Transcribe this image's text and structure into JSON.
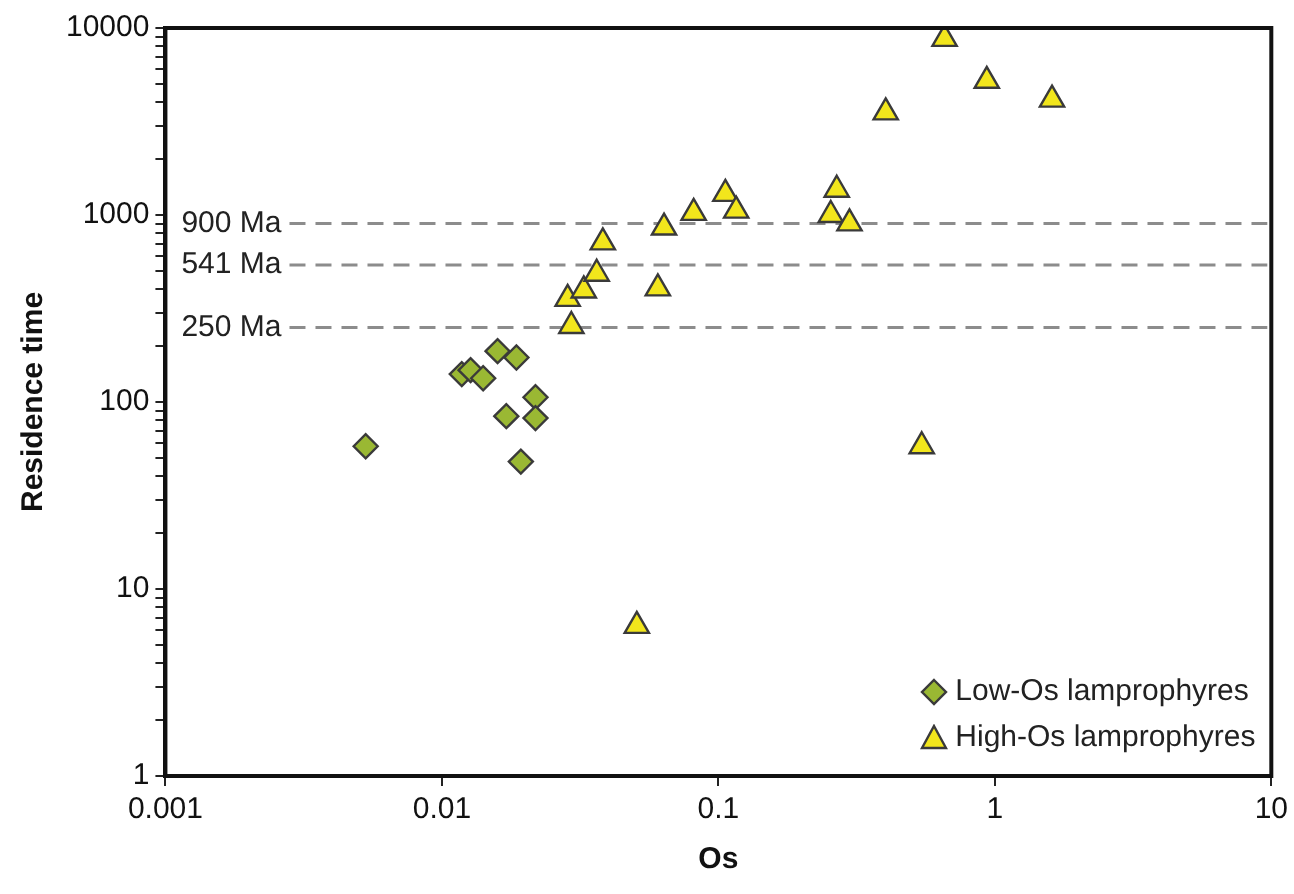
{
  "chart_data": {
    "type": "scatter",
    "xlabel": "Os",
    "ylabel": "Residence time",
    "log": "xy",
    "grid": false,
    "legend": "bottom right",
    "xlim": [
      0.001,
      10
    ],
    "xticks": [
      0.001,
      0.01,
      0.1,
      1,
      10
    ],
    "ylim": [
      1,
      10000
    ],
    "yticks": [
      1,
      {
        "value": 2,
        "label": null
      },
      {
        "value": 3,
        "label": null
      },
      {
        "value": 4,
        "label": null
      },
      {
        "value": 5,
        "label": null
      },
      {
        "value": 6,
        "label": null
      },
      {
        "value": 7,
        "label": null
      },
      {
        "value": 8,
        "label": null
      },
      {
        "value": 9,
        "label": null
      },
      10,
      {
        "value": 20,
        "label": null
      },
      {
        "value": 30,
        "label": null
      },
      {
        "value": 40,
        "label": null
      },
      {
        "value": 50,
        "label": null
      },
      {
        "value": 60,
        "label": null
      },
      {
        "value": 70,
        "label": null
      },
      {
        "value": 80,
        "label": null
      },
      {
        "value": 90,
        "label": null
      },
      100,
      {
        "value": 200,
        "label": null
      },
      {
        "value": 300,
        "label": null
      },
      {
        "value": 400,
        "label": null
      },
      {
        "value": 500,
        "label": null
      },
      {
        "value": 600,
        "label": null
      },
      {
        "value": 700,
        "label": null
      },
      {
        "value": 800,
        "label": null
      },
      {
        "value": 900,
        "label": null
      },
      1000,
      {
        "value": 2000,
        "label": null
      },
      {
        "value": 3000,
        "label": null
      },
      {
        "value": 4000,
        "label": null
      },
      {
        "value": 5000,
        "label": null
      },
      {
        "value": 6000,
        "label": null
      },
      {
        "value": 7000,
        "label": null
      },
      {
        "value": 8000,
        "label": null
      },
      {
        "value": 9000,
        "label": null
      },
      10000
    ],
    "ref_lines": [
      {
        "axis": "y",
        "value": 900,
        "label": "900 Ma",
        "color": "#8c8c8c",
        "line_style": "dashed"
      },
      {
        "axis": "y",
        "value": 541,
        "label": "541 Ma",
        "color": "#8c8c8c",
        "line_style": "dashed"
      },
      {
        "axis": "y",
        "value": 250,
        "label": "250 Ma",
        "color": "#8c8c8c",
        "line_style": "dashed"
      }
    ],
    "series": [
      {
        "name": "Low-Os lamprophyres",
        "color": "#9ab833",
        "marker": "diamond",
        "x": [
          0.0053,
          0.0118,
          0.0127,
          0.0141,
          0.0159,
          0.0186,
          0.0171,
          0.0218,
          0.0218,
          0.0193
        ],
        "values": [
          58,
          141,
          148,
          134,
          187,
          173,
          84,
          106,
          82,
          48
        ]
      },
      {
        "name": "High-Os lamprophyres",
        "color": "#f2e61c",
        "marker": "triangle",
        "x": [
          0.0285,
          0.0294,
          0.0326,
          0.0363,
          0.0382,
          0.0636,
          0.0604,
          0.0814,
          0.106,
          0.116,
          0.268,
          0.255,
          0.298,
          0.403,
          0.658,
          0.935,
          1.61,
          0.544,
          0.0507
        ],
        "values": [
          356,
          255,
          395,
          485,
          714,
          857,
          405,
          1027,
          1297,
          1055,
          1365,
          1000,
          902,
          3540,
          8750,
          5220,
          4140,
          58,
          6.35
        ]
      }
    ]
  }
}
